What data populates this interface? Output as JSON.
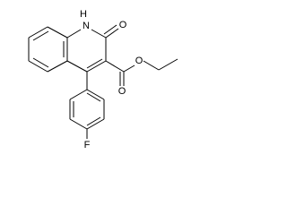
{
  "atoms": [
    {
      "label": "H"
    },
    {
      "label": "N"
    },
    {
      "label": "O"
    },
    {
      "label": "O"
    },
    {
      "label": "O"
    },
    {
      "label": "F"
    }
  ]
}
